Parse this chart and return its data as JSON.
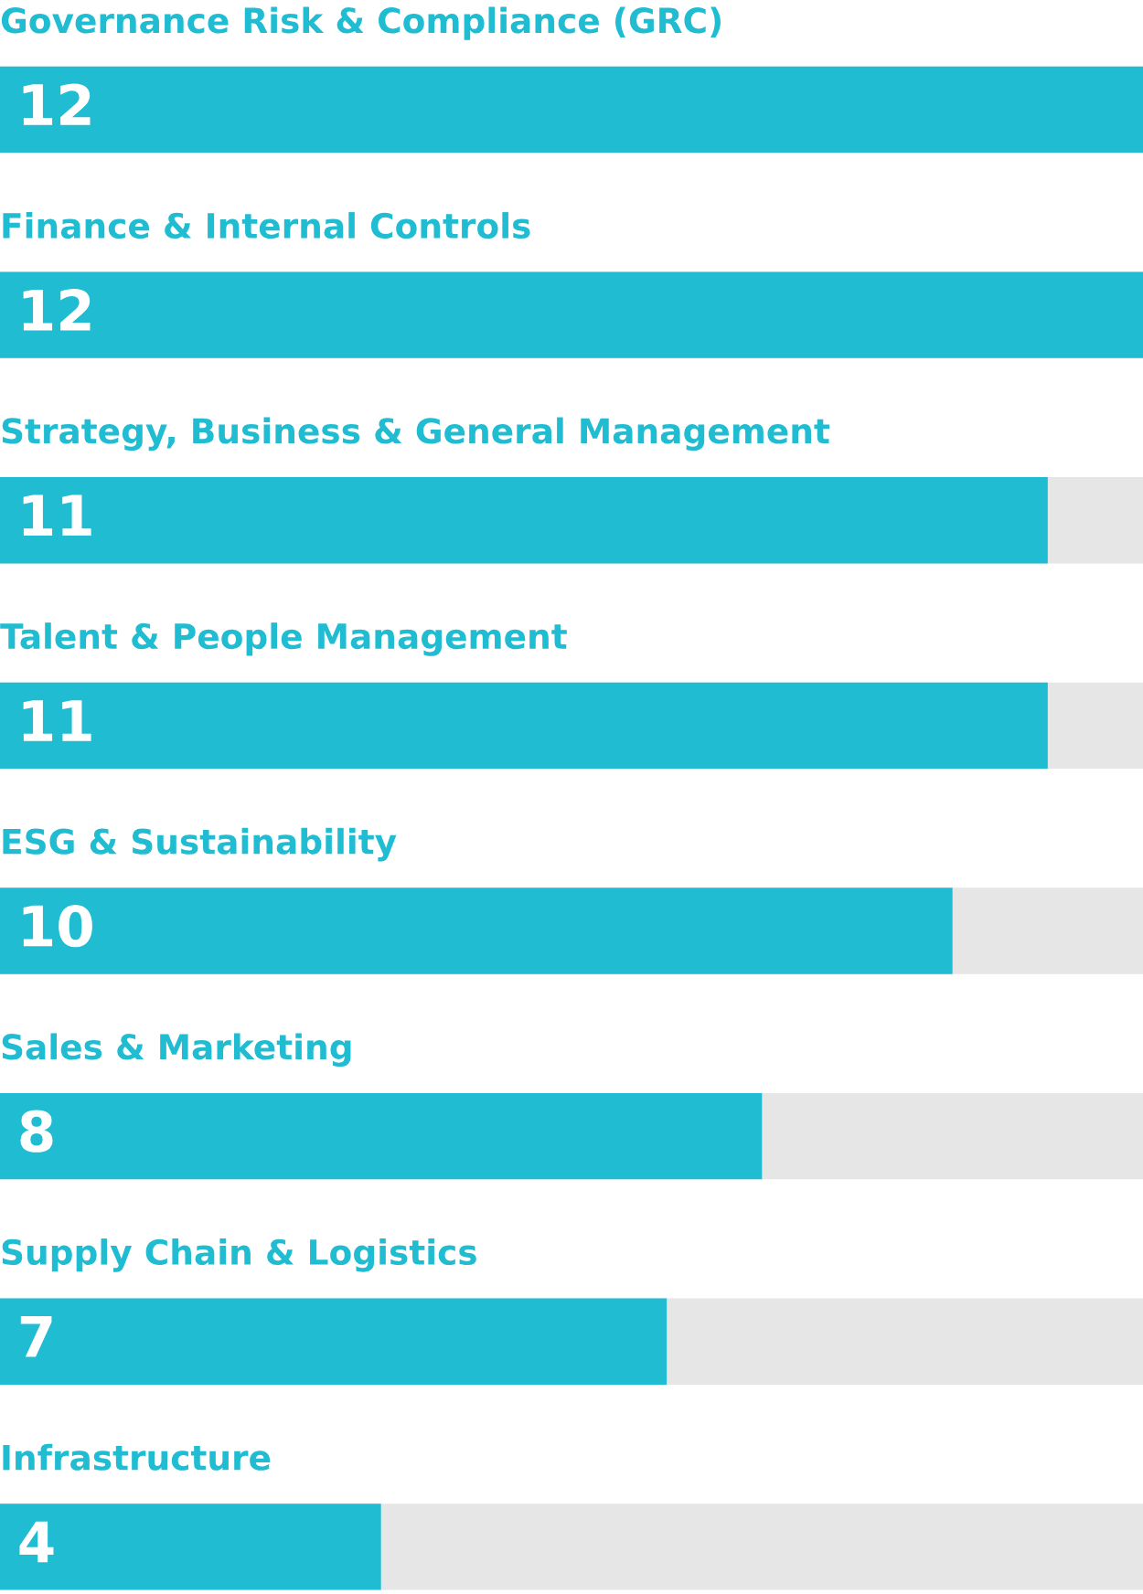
{
  "chart_data": {
    "type": "bar",
    "orientation": "horizontal",
    "categories": [
      "Governance Risk & Compliance (GRC)",
      "Finance & Internal Controls",
      "Strategy, Business & General Management",
      "Talent & People Management",
      "ESG & Sustainability",
      "Sales & Marketing",
      "Supply Chain & Logistics",
      "Infrastructure"
    ],
    "values": [
      12,
      12,
      11,
      11,
      10,
      8,
      7,
      4
    ],
    "color": "#1fbcd2",
    "xlim": [
      0,
      12
    ],
    "data_labels": true
  }
}
